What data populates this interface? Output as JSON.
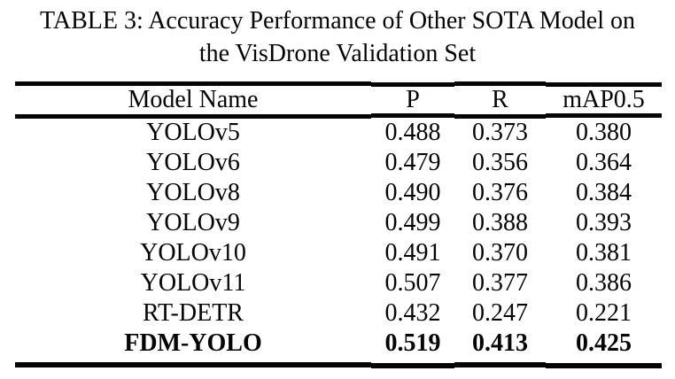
{
  "page": {
    "background": "#ffffff",
    "text_color": "#050505"
  },
  "caption": {
    "line1": "TABLE 3: Accuracy Performance of Other SOTA Model on",
    "line2": "the VisDrone Validation Set"
  },
  "table": {
    "columns": [
      "Model Name",
      "P",
      "R",
      "mAP0.5"
    ],
    "rows": [
      {
        "model": "YOLOv5",
        "p": "0.488",
        "r": "0.373",
        "map05": "0.380"
      },
      {
        "model": "YOLOv6",
        "p": "0.479",
        "r": "0.356",
        "map05": "0.364"
      },
      {
        "model": "YOLOv8",
        "p": "0.490",
        "r": "0.376",
        "map05": "0.384"
      },
      {
        "model": "YOLOv9",
        "p": "0.499",
        "r": "0.388",
        "map05": "0.393"
      },
      {
        "model": "YOLOv10",
        "p": "0.491",
        "r": "0.370",
        "map05": "0.381"
      },
      {
        "model": "YOLOv11",
        "p": "0.507",
        "r": "0.377",
        "map05": "0.386"
      },
      {
        "model": "RT-DETR",
        "p": "0.432",
        "r": "0.247",
        "map05": "0.221"
      },
      {
        "model": "FDM-YOLO",
        "p": "0.519",
        "r": "0.413",
        "map05": "0.425",
        "emphasis": "bold"
      }
    ]
  }
}
